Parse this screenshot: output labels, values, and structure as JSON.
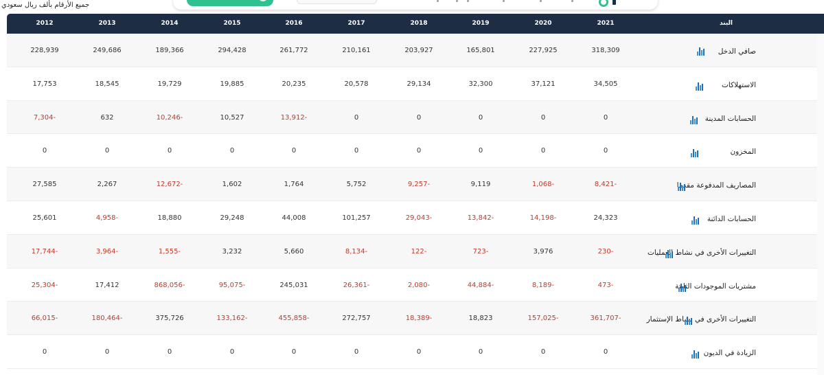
{
  "page": {
    "units_note": "جميع الأرقام بألف ريال سعودي"
  },
  "colors": {
    "header_bg": "#1d2d44",
    "negative": "#c0392b",
    "accent_green": "#2fc28f",
    "chart_icon": "#3b8fd9"
  },
  "table": {
    "label_header": "البند",
    "years": [
      "2021",
      "2020",
      "2019",
      "2018",
      "2017",
      "2016",
      "2015",
      "2014",
      "2013",
      "2012"
    ],
    "rows": [
      {
        "label": "صافي الدخل",
        "icon": "bar-chart-icon",
        "values": [
          "318,309",
          "227,925",
          "165,801",
          "203,927",
          "210,161",
          "261,772",
          "294,428",
          "189,366",
          "249,686",
          "228,939"
        ]
      },
      {
        "label": "الاستهلاكات",
        "icon": "bar-chart-icon",
        "values": [
          "34,505",
          "37,121",
          "32,300",
          "29,134",
          "20,578",
          "20,235",
          "19,885",
          "19,729",
          "18,545",
          "17,753"
        ]
      },
      {
        "label": "الحسابات المدينة",
        "icon": "bar-chart-icon",
        "values": [
          "0",
          "0",
          "0",
          "0",
          "0",
          "13,912-",
          "10,527",
          "10,246-",
          "632",
          "7,304-"
        ]
      },
      {
        "label": "المخزون",
        "icon": "bar-chart-icon",
        "values": [
          "0",
          "0",
          "0",
          "0",
          "0",
          "0",
          "0",
          "0",
          "0",
          "0"
        ]
      },
      {
        "label": "المصاريف المدفوعة مقدما",
        "icon": "bar-chart-icon",
        "values": [
          "8,421-",
          "1,068-",
          "9,119",
          "9,257-",
          "5,752",
          "1,764",
          "1,602",
          "12,672-",
          "2,267",
          "27,585"
        ]
      },
      {
        "label": "الحسابات الدائنة",
        "icon": "bar-chart-icon",
        "values": [
          "24,323",
          "14,198-",
          "13,842-",
          "29,043-",
          "101,257",
          "44,008",
          "29,248",
          "18,880",
          "4,958-",
          "25,601"
        ]
      },
      {
        "label": "التغييرات الأخرى في نشاط العمليات",
        "icon": "bar-chart-icon",
        "values": [
          "230-",
          "3,976",
          "723-",
          "122-",
          "8,134-",
          "5,660",
          "3,232",
          "1,555-",
          "3,964-",
          "17,744-"
        ]
      },
      {
        "label": "مشتريات الموجودات الثابتة",
        "icon": "bar-chart-icon",
        "values": [
          "473-",
          "8,189-",
          "44,884-",
          "2,080-",
          "26,361-",
          "245,031",
          "95,075-",
          "868,056-",
          "17,412",
          "25,304-"
        ]
      },
      {
        "label": "التغييرات الأخرى في نشاط الإستثمار",
        "icon": "bar-chart-icon",
        "values": [
          "361,707-",
          "157,025-",
          "18,823",
          "18,389-",
          "272,757",
          "455,858-",
          "133,162-",
          "375,726",
          "180,464-",
          "66,015-"
        ]
      },
      {
        "label": "الزيادة في الديون",
        "icon": "bar-chart-icon",
        "values": [
          "0",
          "0",
          "0",
          "0",
          "0",
          "0",
          "0",
          "0",
          "0",
          "0"
        ]
      }
    ]
  }
}
